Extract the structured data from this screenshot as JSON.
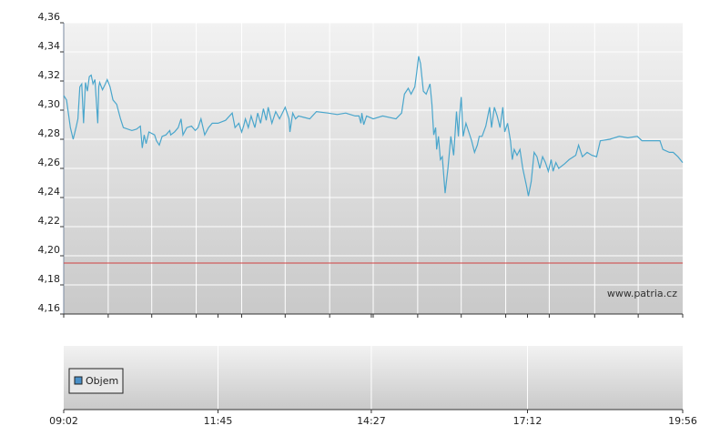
{
  "chart_data": {
    "type": "line",
    "watermark": "www.patria.cz",
    "xlim": [
      "09:02",
      "19:56"
    ],
    "xticks": [
      "09:02",
      "11:45",
      "14:27",
      "17:12",
      "19:56"
    ],
    "x_grid": [
      "09:49",
      "10:35",
      "11:22",
      "12:10",
      "12:56",
      "13:43",
      "14:29",
      "15:16",
      "16:02",
      "16:49",
      "17:35",
      "18:23",
      "19:09"
    ],
    "ylim": [
      4.16,
      4.36
    ],
    "yticks": [
      {
        "value": 4.16,
        "label": "4,16"
      },
      {
        "value": 4.18,
        "label": "4,18"
      },
      {
        "value": 4.2,
        "label": "4,20"
      },
      {
        "value": 4.22,
        "label": "4,22"
      },
      {
        "value": 4.24,
        "label": "4,24"
      },
      {
        "value": 4.26,
        "label": "4,26"
      },
      {
        "value": 4.28,
        "label": "4,28"
      },
      {
        "value": 4.3,
        "label": "4,30"
      },
      {
        "value": 4.32,
        "label": "4,32"
      },
      {
        "value": 4.34,
        "label": "4,34"
      },
      {
        "value": 4.36,
        "label": "4,36"
      }
    ],
    "grid": true,
    "reference_line": {
      "value": 4.195,
      "color": "#d04040"
    },
    "x": [
      "09:02",
      "09:05",
      "09:09",
      "09:12",
      "09:15",
      "09:17",
      "09:19",
      "09:21",
      "09:23",
      "09:25",
      "09:27",
      "09:29",
      "09:31",
      "09:33",
      "09:35",
      "09:38",
      "09:39",
      "09:40",
      "09:43",
      "09:46",
      "09:48",
      "09:51",
      "09:54",
      "09:58",
      "10:02",
      "10:05",
      "10:14",
      "10:19",
      "10:21",
      "10:23",
      "10:25",
      "10:27",
      "10:29",
      "10:32",
      "10:38",
      "10:40",
      "10:43",
      "10:46",
      "10:50",
      "10:54",
      "10:55",
      "10:59",
      "11:03",
      "11:06",
      "11:08",
      "11:12",
      "11:17",
      "11:21",
      "11:24",
      "11:27",
      "11:31",
      "11:35",
      "11:39",
      "11:45",
      "11:53",
      "12:00",
      "12:03",
      "12:07",
      "12:10",
      "12:12",
      "12:14",
      "12:17",
      "12:20",
      "12:24",
      "12:27",
      "12:30",
      "12:33",
      "12:36",
      "12:38",
      "12:42",
      "12:46",
      "12:50",
      "12:53",
      "12:56",
      "13:00",
      "13:01",
      "13:04",
      "13:07",
      "13:10",
      "13:16",
      "13:22",
      "13:29",
      "13:41",
      "13:51",
      "14:00",
      "14:10",
      "14:14",
      "14:16",
      "14:17",
      "14:19",
      "14:22",
      "14:29",
      "14:39",
      "14:53",
      "14:59",
      "15:02",
      "15:06",
      "15:09",
      "15:13",
      "15:15",
      "15:17",
      "15:19",
      "15:22",
      "15:25",
      "15:29",
      "15:31",
      "15:33",
      "15:35",
      "15:36",
      "15:38",
      "15:40",
      "15:42",
      "15:45",
      "15:48",
      "15:51",
      "15:54",
      "15:57",
      "15:59",
      "16:00",
      "16:02",
      "16:04",
      "16:07",
      "16:10",
      "16:13",
      "16:16",
      "16:19",
      "16:21",
      "16:24",
      "16:28",
      "16:32",
      "16:34",
      "16:37",
      "16:40",
      "16:43",
      "16:46",
      "16:48",
      "16:51",
      "16:54",
      "16:56",
      "16:58",
      "17:01",
      "17:04",
      "17:07",
      "17:11",
      "17:13",
      "17:16",
      "17:19",
      "17:22",
      "17:25",
      "17:28",
      "17:31",
      "17:34",
      "17:37",
      "17:39",
      "17:42",
      "17:45",
      "17:51",
      "17:56",
      "18:03",
      "18:06",
      "18:10",
      "18:15",
      "18:20",
      "18:25",
      "18:29",
      "18:39",
      "18:49",
      "18:58",
      "19:08",
      "19:13",
      "19:22",
      "19:32",
      "19:35",
      "19:42",
      "19:46",
      "19:51",
      "19:56"
    ],
    "series": [
      {
        "color": "#4aa6cc",
        "values": [
          4.31,
          4.307,
          4.288,
          4.28,
          4.288,
          4.294,
          4.316,
          4.318,
          4.291,
          4.319,
          4.313,
          4.323,
          4.324,
          4.318,
          4.321,
          4.291,
          4.316,
          4.319,
          4.314,
          4.318,
          4.321,
          4.316,
          4.307,
          4.304,
          4.294,
          4.288,
          4.286,
          4.287,
          4.288,
          4.289,
          4.274,
          4.283,
          4.277,
          4.285,
          4.283,
          4.279,
          4.276,
          4.282,
          4.283,
          4.286,
          4.283,
          4.285,
          4.288,
          4.294,
          4.283,
          4.288,
          4.289,
          4.286,
          4.288,
          4.294,
          4.283,
          4.288,
          4.291,
          4.291,
          4.293,
          4.298,
          4.288,
          4.291,
          4.285,
          4.289,
          4.294,
          4.288,
          4.296,
          4.288,
          4.298,
          4.291,
          4.301,
          4.293,
          4.302,
          4.291,
          4.299,
          4.294,
          4.298,
          4.302,
          4.294,
          4.285,
          4.298,
          4.294,
          4.296,
          4.295,
          4.294,
          4.299,
          4.298,
          4.297,
          4.298,
          4.296,
          4.296,
          4.291,
          4.298,
          4.29,
          4.296,
          4.294,
          4.296,
          4.294,
          4.298,
          4.311,
          4.315,
          4.311,
          4.316,
          4.326,
          4.337,
          4.332,
          4.313,
          4.311,
          4.318,
          4.304,
          4.283,
          4.288,
          4.273,
          4.282,
          4.266,
          4.268,
          4.243,
          4.26,
          4.282,
          4.269,
          4.299,
          4.282,
          4.294,
          4.309,
          4.282,
          4.291,
          4.285,
          4.279,
          4.271,
          4.276,
          4.282,
          4.282,
          4.289,
          4.302,
          4.288,
          4.302,
          4.296,
          4.288,
          4.302,
          4.285,
          4.291,
          4.279,
          4.266,
          4.273,
          4.269,
          4.273,
          4.26,
          4.248,
          4.241,
          4.251,
          4.271,
          4.268,
          4.26,
          4.268,
          4.264,
          4.258,
          4.266,
          4.258,
          4.264,
          4.26,
          4.263,
          4.266,
          4.269,
          4.276,
          4.268,
          4.271,
          4.269,
          4.268,
          4.279,
          4.28,
          4.282,
          4.281,
          4.282,
          4.279,
          4.279,
          4.279,
          4.273,
          4.271,
          4.271,
          4.268,
          4.264
        ]
      }
    ],
    "volume_panel": {
      "legend": "Objem",
      "color": "#4a90c8"
    }
  }
}
